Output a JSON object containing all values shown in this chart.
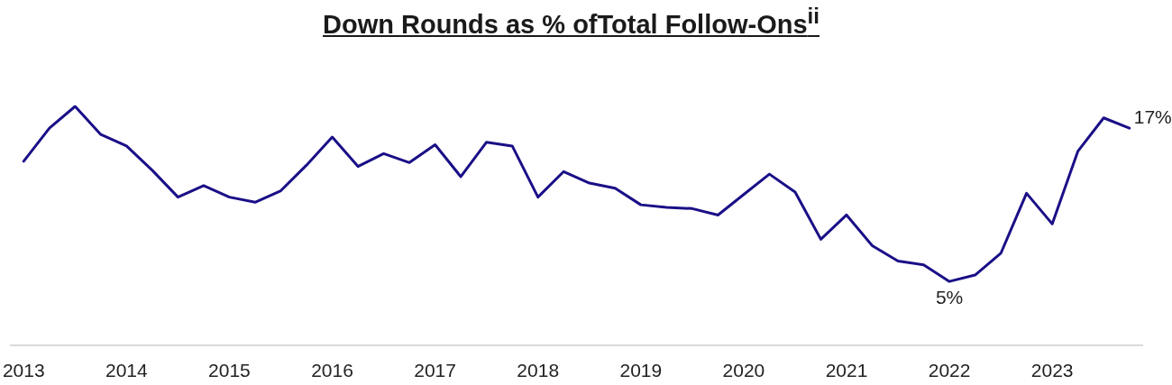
{
  "chart_data": {
    "type": "line",
    "title": "Down Rounds as % ofTotal Follow-Ons$^{ii}$",
    "categories": [
      "2013",
      null,
      null,
      null,
      "2014",
      null,
      null,
      null,
      "2015",
      null,
      null,
      null,
      "2016",
      null,
      null,
      null,
      "2017",
      null,
      null,
      null,
      "2018",
      null,
      null,
      null,
      "2019",
      null,
      null,
      null,
      "2020",
      null,
      null,
      null,
      "2021",
      null,
      null,
      null,
      "2022",
      null,
      null,
      null,
      "2023",
      null,
      null,
      null
    ],
    "values": [
      14.4,
      17.0,
      18.7,
      16.5,
      15.6,
      13.7,
      11.6,
      12.5,
      11.6,
      11.2,
      12.1,
      14.1,
      16.3,
      14.0,
      15.0,
      14.3,
      15.7,
      13.2,
      15.9,
      15.6,
      11.6,
      13.6,
      12.7,
      12.3,
      11.0,
      10.8,
      10.7,
      10.2,
      11.8,
      13.4,
      12.0,
      8.3,
      10.2,
      7.8,
      6.6,
      6.3,
      5,
      5.5,
      7.2,
      11.9,
      9.5,
      15.2,
      17.8,
      17
    ],
    "value_labels": [
      null,
      null,
      null,
      null,
      null,
      null,
      null,
      null,
      null,
      null,
      null,
      null,
      null,
      null,
      null,
      null,
      null,
      null,
      null,
      null,
      null,
      null,
      null,
      null,
      null,
      null,
      null,
      null,
      null,
      null,
      null,
      null,
      null,
      null,
      null,
      null,
      "5%",
      null,
      null,
      null,
      null,
      null,
      null,
      "17%"
    ],
    "color": "#1a0f87",
    "tick_labels": "x",
    "grid": false,
    "legend": false,
    "marker": "none",
    "line_style": "solid"
  }
}
